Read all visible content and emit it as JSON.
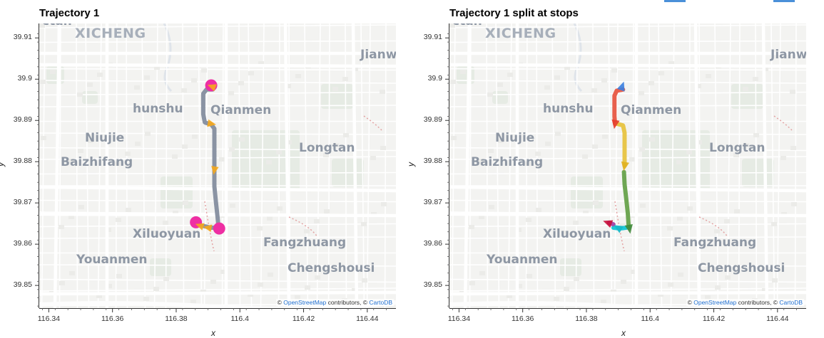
{
  "panels": [
    {
      "title": "Trajectory 1",
      "xlabel": "x",
      "ylabel": "y"
    },
    {
      "title": "Trajectory 1 split at stops",
      "xlabel": "x",
      "ylabel": "y"
    }
  ],
  "y_ticks": [
    "39.91",
    "39.9",
    "39.89",
    "39.88",
    "39.87",
    "39.86",
    "39.85"
  ],
  "x_ticks": [
    "116.34",
    "116.36",
    "116.38",
    "116.4",
    "116.42",
    "116.44"
  ],
  "map_labels": {
    "xicheng": "XICHENG",
    "jianw": "Jianw",
    "hunshu": "hunshu",
    "qianmen": "Qianmen",
    "niujie": "Niujie",
    "longtan": "Longtan",
    "baizhifang": "Baizhifang",
    "xiluoyuan": "Xiluoyuan",
    "fangzhuang": "Fangzhuang",
    "youanmen": "Youanmen",
    "chengshousi": "Chengshousi",
    "top_cut": "ctan"
  },
  "attribution": {
    "prefix": "©",
    "osm": "OpenStreetMap",
    "middle": "contributors, ©",
    "carto": "CartoDB"
  },
  "chart_data": [
    {
      "type": "scatter",
      "title": "Trajectory 1",
      "xlabel": "x",
      "ylabel": "y",
      "xlim": [
        116.337,
        116.449
      ],
      "ylim": [
        39.8445,
        39.9135
      ],
      "series": [
        {
          "kind": "path",
          "color": "#8a93a3",
          "points": [
            [
              116.3915,
              39.8975
            ],
            [
              116.3895,
              39.8975
            ],
            [
              116.3885,
              39.8965
            ],
            [
              116.3885,
              39.894
            ],
            [
              116.3885,
              39.8915
            ],
            [
              116.389,
              39.8895
            ],
            [
              116.391,
              39.889
            ],
            [
              116.392,
              39.888
            ],
            [
              116.392,
              39.885
            ],
            [
              116.392,
              39.881
            ],
            [
              116.392,
              39.878
            ],
            [
              116.392,
              39.874
            ],
            [
              116.3925,
              39.87
            ],
            [
              116.393,
              39.8665
            ],
            [
              116.3933,
              39.864
            ],
            [
              116.391,
              39.864
            ],
            [
              116.388,
              39.8645
            ],
            [
              116.3865,
              39.8652
            ]
          ]
        }
      ],
      "stops": [
        [
          116.391,
          39.8985
        ],
        [
          116.3862,
          39.8653
        ],
        [
          116.3935,
          39.8638
        ]
      ],
      "direction_markers": [
        [
          116.3913,
          39.8982
        ],
        [
          116.391,
          39.8892
        ],
        [
          116.392,
          39.878
        ],
        [
          116.39,
          39.864
        ],
        [
          116.3875,
          39.8645
        ]
      ]
    },
    {
      "type": "scatter",
      "title": "Trajectory 1 split at stops",
      "xlabel": "x",
      "ylabel": "y",
      "xlim": [
        116.337,
        116.449
      ],
      "ylim": [
        39.8445,
        39.9135
      ],
      "series": [
        {
          "kind": "segment",
          "color": "#e8604c",
          "points": [
            [
              116.3915,
              39.8975
            ],
            [
              116.3895,
              39.8972
            ],
            [
              116.3888,
              39.896
            ],
            [
              116.3888,
              39.8935
            ],
            [
              116.3888,
              39.891
            ],
            [
              116.389,
              39.8892
            ]
          ]
        },
        {
          "kind": "segment",
          "color": "#e8c64a",
          "points": [
            [
              116.3895,
              39.8892
            ],
            [
              116.3915,
              39.8888
            ],
            [
              116.392,
              39.887
            ],
            [
              116.392,
              39.884
            ],
            [
              116.392,
              39.881
            ],
            [
              116.392,
              39.879
            ]
          ]
        },
        {
          "kind": "segment",
          "color": "#6ea653",
          "points": [
            [
              116.3918,
              39.8775
            ],
            [
              116.392,
              39.8745
            ],
            [
              116.3925,
              39.871
            ],
            [
              116.393,
              39.8675
            ],
            [
              116.3933,
              39.864
            ]
          ]
        },
        {
          "kind": "segment",
          "color": "#1ec8d6",
          "points": [
            [
              116.3925,
              39.864
            ],
            [
              116.3905,
              39.8638
            ],
            [
              116.3885,
              39.864
            ]
          ]
        },
        {
          "kind": "segment",
          "color": "#a94aa6",
          "points": [
            [
              116.3885,
              39.8648
            ],
            [
              116.387,
              39.8652
            ]
          ]
        }
      ],
      "direction_markers": [
        {
          "pt": [
            116.3912,
            39.8982
          ],
          "color": "#3a7fe0"
        },
        {
          "pt": [
            116.389,
            39.8892
          ],
          "color": "#e63d2e"
        },
        {
          "pt": [
            116.392,
            39.879
          ],
          "color": "#e0b020"
        },
        {
          "pt": [
            116.3935,
            39.8638
          ],
          "color": "#3f8a3a"
        },
        {
          "pt": [
            116.39,
            39.864
          ],
          "color": "#16b8c8"
        },
        {
          "pt": [
            116.3868,
            39.8652
          ],
          "color": "#c8103a"
        }
      ]
    }
  ]
}
